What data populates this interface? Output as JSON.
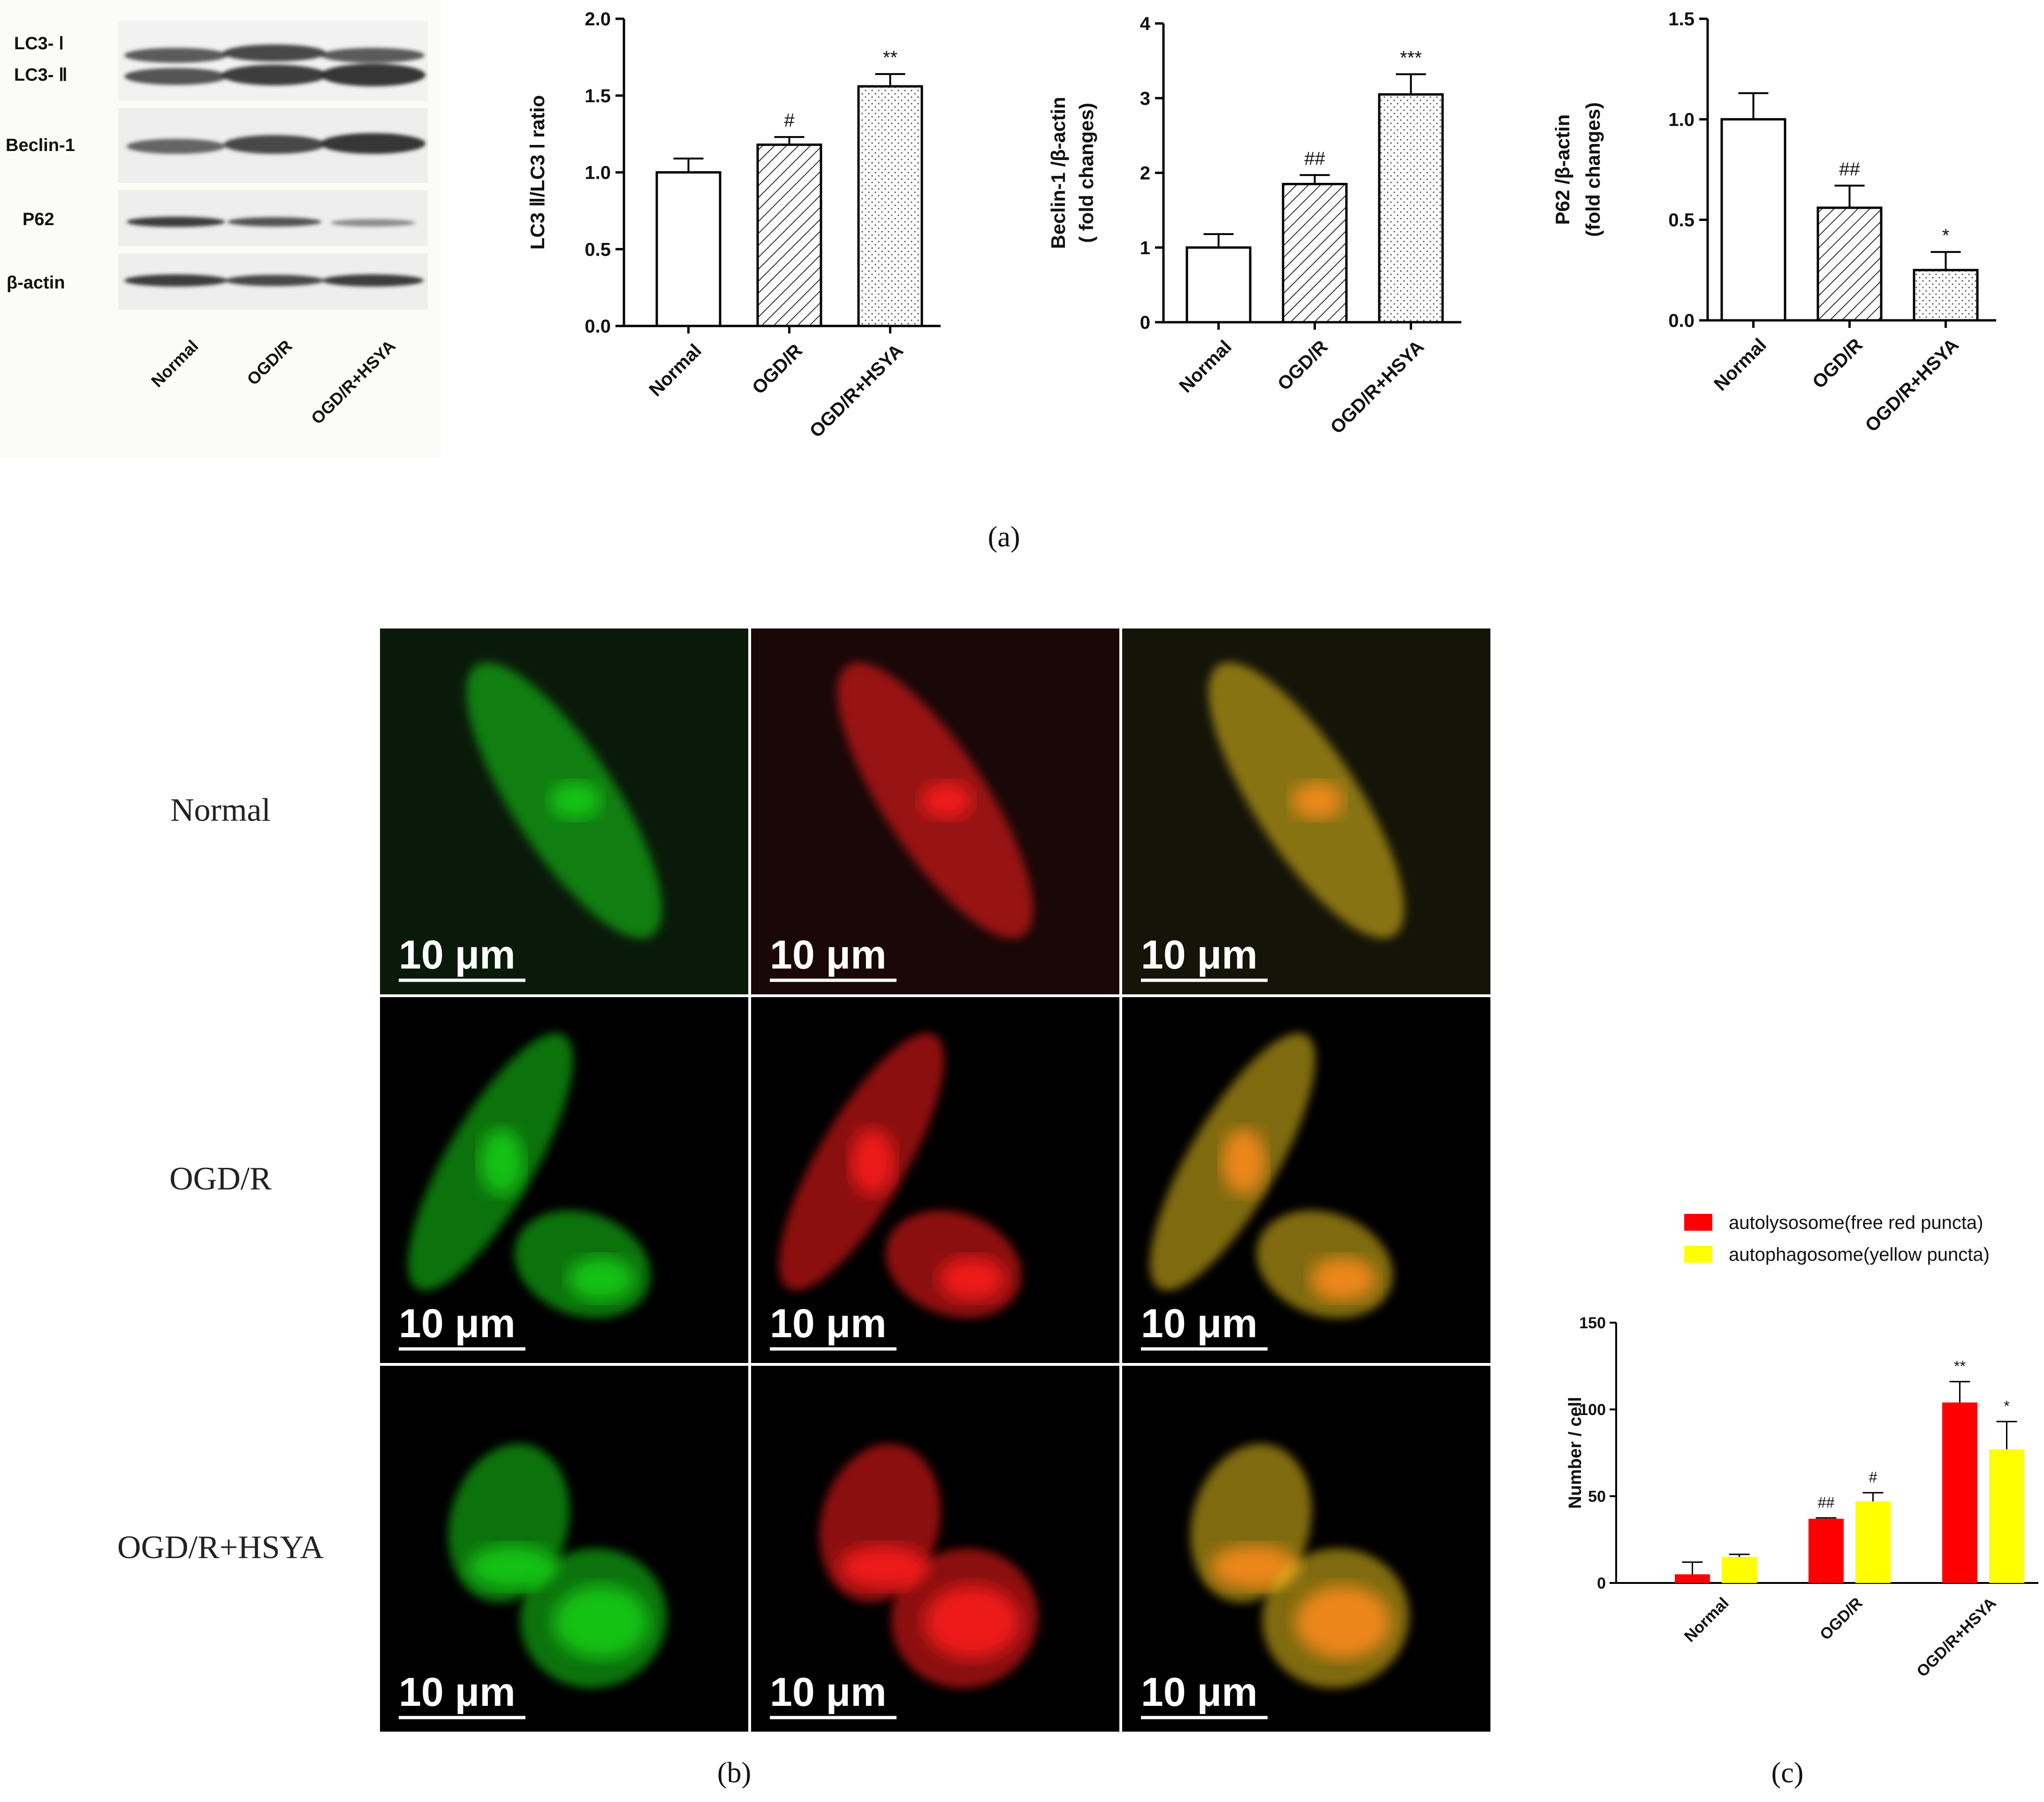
{
  "panel_labels": {
    "a": "(a)",
    "b": "(b)",
    "c": "(c)"
  },
  "western_blot": {
    "bands": [
      "LC3- Ⅰ",
      "LC3- Ⅱ",
      "Beclin-1",
      "P62",
      "β-actin"
    ],
    "lanes": [
      "Normal",
      "OGD/R",
      "OGD/R+HSYA"
    ]
  },
  "fluorescence": {
    "row_labels": [
      "Normal",
      "OGD/R",
      "OGD/R+HSYA"
    ],
    "channels": [
      "green",
      "red",
      "merge"
    ],
    "scale_bar": "10 μm",
    "colors": {
      "green": "#19d019",
      "red": "#ff1a1a",
      "merge": "#e8c21a"
    }
  },
  "chart_data": [
    {
      "type": "bar",
      "ylabel": "LC3 Ⅱ/LC3  Ⅰ ratio",
      "categories": [
        "Normal",
        "OGD/R",
        "OGD/R+HSYA"
      ],
      "values": [
        1.0,
        1.18,
        1.56
      ],
      "errors": [
        0.09,
        0.05,
        0.08
      ],
      "annotations": [
        "",
        "#",
        "**"
      ],
      "patterns": [
        "none",
        "hatch",
        "dots"
      ],
      "ylim": [
        0,
        2.0
      ],
      "yticks": [
        "0.0",
        "0.5",
        "1.0",
        "1.5",
        "2.0"
      ]
    },
    {
      "type": "bar",
      "ylabel": "Beclin-1 /β-actin",
      "ylabel2": "( fold changes)",
      "categories": [
        "Normal",
        "OGD/R",
        "OGD/R+HSYA"
      ],
      "values": [
        1.0,
        1.85,
        3.05
      ],
      "errors": [
        0.18,
        0.12,
        0.27
      ],
      "annotations": [
        "",
        "##",
        "***"
      ],
      "patterns": [
        "none",
        "hatch",
        "dots"
      ],
      "ylim": [
        0,
        4
      ],
      "yticks": [
        "0",
        "1",
        "2",
        "3",
        "4"
      ]
    },
    {
      "type": "bar",
      "ylabel": "P62 /β-actin",
      "ylabel2": "(fold changes)",
      "categories": [
        "Normal",
        "OGD/R",
        "OGD/R+HSYA"
      ],
      "values": [
        1.0,
        0.56,
        0.25
      ],
      "errors": [
        0.13,
        0.11,
        0.09
      ],
      "annotations": [
        "",
        "##",
        "*"
      ],
      "patterns": [
        "none",
        "hatch",
        "dots"
      ],
      "ylim": [
        0,
        1.5
      ],
      "yticks": [
        "0.0",
        "0.5",
        "1.0",
        "1.5"
      ]
    },
    {
      "type": "bar",
      "ylabel": "Number / cell",
      "categories": [
        "Normal",
        "OGD/R",
        "OGD/R+HSYA"
      ],
      "series": [
        {
          "name": "autolysosome(free red puncta)",
          "color": "#ff0000",
          "values": [
            5,
            37,
            104
          ],
          "errors": [
            7,
            0.5,
            12
          ],
          "annotations": [
            "",
            "##",
            "**"
          ]
        },
        {
          "name": "autophagosome(yellow puncta)",
          "color": "#ffff00",
          "values": [
            15,
            47,
            77
          ],
          "errors": [
            1.5,
            5,
            16
          ],
          "annotations": [
            "",
            "#",
            "*"
          ]
        }
      ],
      "ylim": [
        0,
        150
      ],
      "yticks": [
        "0",
        "50",
        "100",
        "150"
      ],
      "legend_position": "top-left"
    }
  ]
}
